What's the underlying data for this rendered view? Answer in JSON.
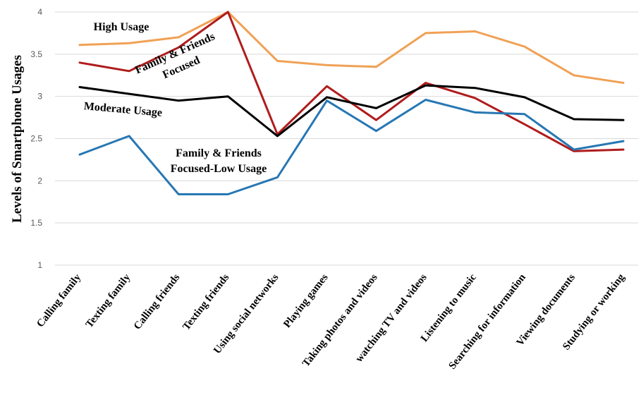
{
  "chart_data": {
    "type": "line",
    "ylabel": "Levels of Smartphone  Usages",
    "xlabel": "",
    "ylim": [
      1,
      4
    ],
    "yticks": [
      "1",
      "1.5",
      "2",
      "2.5",
      "3",
      "3.5",
      "4"
    ],
    "grid": true,
    "categories": [
      "Calling family",
      "Texting family",
      "Calling friends",
      "Texting friends",
      "Using social networks",
      "Playing games",
      "Taking photos and videos",
      "watching TV and videos",
      "Listening to music",
      "Searching for information",
      "Viewing documents",
      "Studying or working"
    ],
    "series": [
      {
        "name": "High Usage",
        "color": "#f0a155",
        "values": [
          3.61,
          3.63,
          3.7,
          4.0,
          3.42,
          3.37,
          3.35,
          3.75,
          3.77,
          3.59,
          3.25,
          3.16
        ]
      },
      {
        "name": "Family & Friends Focused",
        "color": "#b01c1c",
        "values": [
          3.4,
          3.3,
          3.58,
          4.0,
          2.55,
          3.12,
          2.72,
          3.16,
          2.98,
          2.67,
          2.35,
          2.37
        ]
      },
      {
        "name": "Moderate Usage",
        "color": "#000000",
        "values": [
          3.11,
          3.03,
          2.95,
          3.0,
          2.53,
          2.99,
          2.86,
          3.13,
          3.1,
          2.99,
          2.73,
          2.72
        ]
      },
      {
        "name": "Family & Friends Focused-Low Usage",
        "color": "#2777b4",
        "values": [
          2.31,
          2.53,
          1.84,
          1.84,
          2.04,
          2.95,
          2.59,
          2.96,
          2.81,
          2.79,
          2.37,
          2.47
        ]
      }
    ],
    "annotations": [
      {
        "lines": [
          "High Usage"
        ]
      },
      {
        "lines": [
          "Family & Friends",
          "Focused"
        ]
      },
      {
        "lines": [
          "Moderate Usage"
        ]
      },
      {
        "lines": [
          "Family & Friends",
          "Focused-Low Usage"
        ]
      }
    ]
  }
}
